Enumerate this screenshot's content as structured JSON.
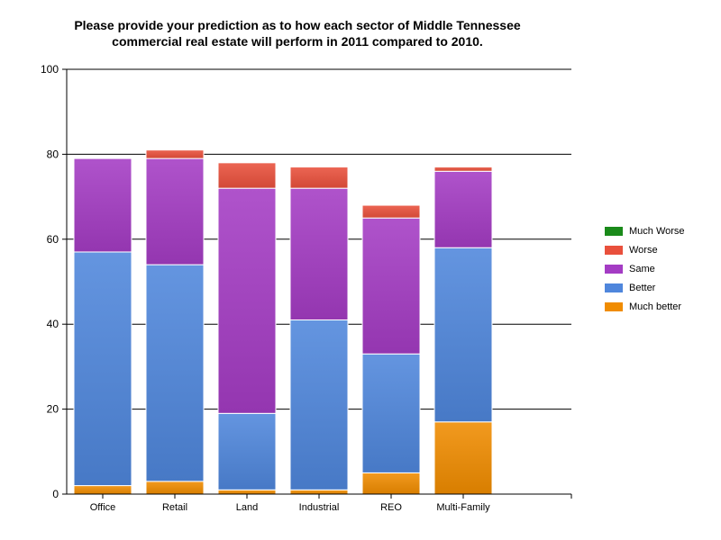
{
  "chart_data": {
    "type": "bar",
    "stacked": true,
    "title_lines": [
      "Please provide your prediction as to how each sector of Middle Tennessee",
      "commercial real estate will perform in 2011 compared to 2010."
    ],
    "xlabel": "",
    "ylabel": "",
    "ylim": [
      0,
      100
    ],
    "yticks": [
      0,
      20,
      40,
      60,
      80,
      100
    ],
    "grid": true,
    "legend_position": "right",
    "categories": [
      "Office",
      "Retail",
      "Land",
      "Industrial",
      "REO",
      "Multi-Family"
    ],
    "series": [
      {
        "name": "Much better",
        "color": "#f08c00",
        "values": [
          2,
          3,
          1,
          1,
          5,
          17
        ]
      },
      {
        "name": "Better",
        "color": "#4f86dc",
        "values": [
          55,
          51,
          18,
          40,
          28,
          41
        ]
      },
      {
        "name": "Same",
        "color": "#a43cc4",
        "values": [
          22,
          25,
          53,
          31,
          32,
          18
        ]
      },
      {
        "name": "Worse",
        "color": "#e9503c",
        "values": [
          0,
          2,
          6,
          5,
          3,
          1
        ]
      },
      {
        "name": "Much Worse",
        "color": "#1a8a1a",
        "values": [
          0,
          0,
          0,
          0,
          0,
          0
        ]
      }
    ]
  }
}
